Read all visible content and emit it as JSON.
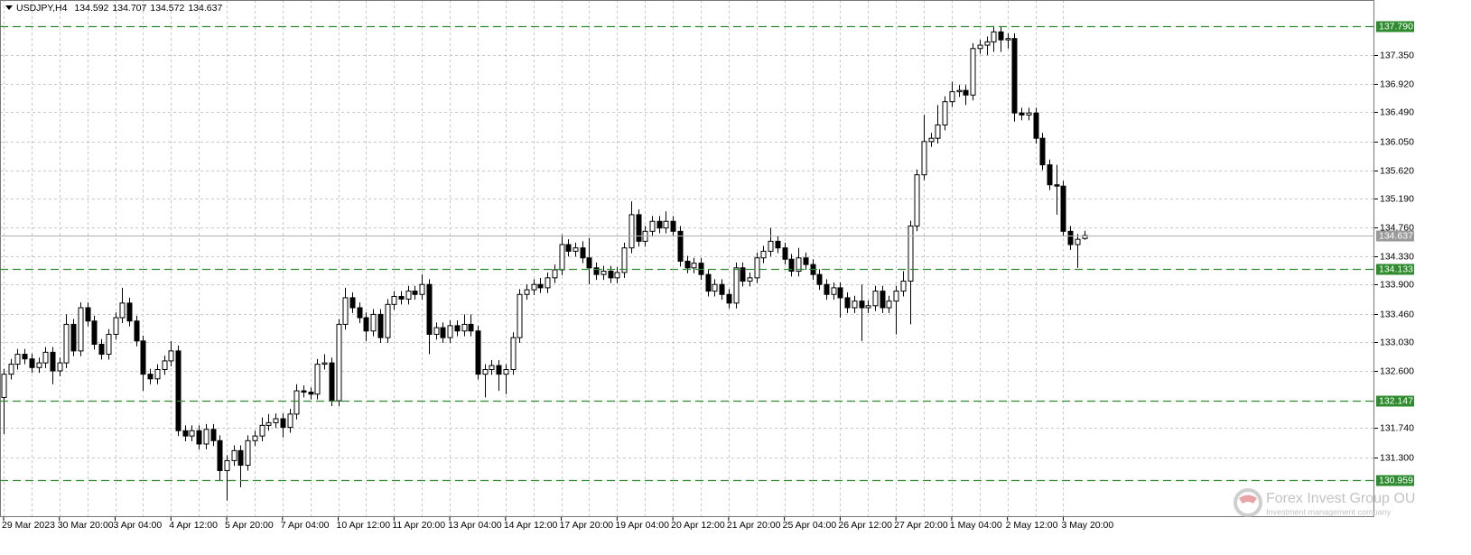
{
  "chart_data": {
    "type": "candlestick",
    "symbol": "USDJPY,H4",
    "categories": [
      "29 Mar 2023",
      null,
      null,
      null,
      null,
      null,
      null,
      null,
      "30 Mar 20:00",
      null,
      null,
      null,
      null,
      null,
      null,
      null,
      "3 Apr 04:00",
      null,
      null,
      null,
      null,
      null,
      null,
      null,
      "4 Apr 12:00",
      null,
      null,
      null,
      null,
      null,
      null,
      null,
      "5 Apr 20:00",
      null,
      null,
      null,
      null,
      null,
      null,
      null,
      "7 Apr 04:00",
      null,
      null,
      null,
      null,
      null,
      null,
      null,
      "10 Apr 12:00",
      null,
      null,
      null,
      null,
      null,
      null,
      null,
      "11 Apr 20:00",
      null,
      null,
      null,
      null,
      null,
      null,
      null,
      "13 Apr 04:00",
      null,
      null,
      null,
      null,
      null,
      null,
      null,
      "14 Apr 12:00",
      null,
      null,
      null,
      null,
      null,
      null,
      null,
      "17 Apr 20:00",
      null,
      null,
      null,
      null,
      null,
      null,
      null,
      "19 Apr 04:00",
      null,
      null,
      null,
      null,
      null,
      null,
      null,
      "20 Apr 12:00",
      null,
      null,
      null,
      null,
      null,
      null,
      null,
      "21 Apr 20:00",
      null,
      null,
      null,
      null,
      null,
      null,
      null,
      "25 Apr 04:00",
      null,
      null,
      null,
      null,
      null,
      null,
      null,
      "26 Apr 12:00",
      null,
      null,
      null,
      null,
      null,
      null,
      null,
      "27 Apr 20:00",
      null,
      null,
      null,
      null,
      null,
      null,
      null,
      "1 May 04:00",
      null,
      null,
      null,
      null,
      null,
      null,
      null,
      "2 May 12:00",
      null,
      null,
      null,
      null,
      null,
      null,
      null,
      "3 May 20:00",
      null,
      null,
      null
    ],
    "open": [
      132.2,
      132.55,
      132.7,
      132.85,
      132.78,
      132.65,
      132.72,
      132.88,
      132.6,
      132.72,
      133.3,
      132.9,
      133.55,
      133.35,
      133.0,
      132.85,
      133.15,
      133.4,
      133.62,
      133.35,
      133.05,
      132.55,
      132.48,
      132.62,
      132.75,
      132.9,
      131.7,
      131.62,
      131.7,
      131.5,
      131.72,
      131.55,
      131.1,
      131.25,
      131.4,
      131.18,
      131.55,
      131.62,
      131.78,
      131.82,
      131.88,
      131.75,
      131.95,
      132.3,
      132.28,
      132.25,
      132.7,
      132.72,
      132.15,
      133.3,
      133.7,
      133.55,
      133.4,
      133.2,
      133.45,
      133.1,
      133.6,
      133.72,
      133.68,
      133.8,
      133.75,
      133.9,
      133.15,
      133.25,
      133.1,
      133.28,
      133.2,
      133.3,
      133.2,
      132.55,
      132.62,
      132.68,
      132.55,
      132.62,
      133.1,
      133.75,
      133.82,
      133.9,
      133.85,
      134.0,
      134.12,
      134.5,
      134.4,
      134.45,
      134.3,
      134.15,
      134.05,
      134.1,
      134.0,
      134.08,
      134.45,
      134.95,
      134.55,
      134.7,
      134.85,
      134.75,
      134.85,
      134.7,
      134.25,
      134.15,
      134.22,
      134.05,
      133.8,
      133.9,
      133.75,
      133.62,
      134.15,
      133.95,
      134.0,
      134.3,
      134.4,
      134.55,
      134.45,
      134.28,
      134.1,
      134.3,
      134.2,
      134.05,
      133.9,
      133.75,
      133.85,
      133.7,
      133.55,
      133.65,
      133.55,
      133.58,
      133.8,
      133.55,
      133.65,
      133.8,
      133.95,
      134.78,
      135.55,
      136.05,
      136.1,
      136.3,
      136.65,
      136.8,
      136.82,
      136.75,
      137.45,
      137.5,
      137.55,
      137.7,
      137.58,
      137.6,
      136.48,
      136.45,
      136.48,
      136.1,
      135.7,
      135.4,
      135.38,
      134.7,
      134.5,
      134.592
    ],
    "high": [
      132.63,
      132.78,
      132.93,
      132.93,
      132.86,
      132.8,
      132.96,
      132.96,
      132.8,
      133.45,
      133.38,
      133.63,
      133.63,
      133.43,
      133.08,
      133.23,
      133.48,
      133.85,
      133.7,
      133.43,
      133.13,
      132.63,
      132.7,
      132.83,
      133.05,
      132.98,
      131.78,
      131.78,
      131.78,
      131.8,
      131.8,
      131.63,
      131.33,
      131.48,
      131.48,
      131.63,
      131.7,
      131.9,
      131.95,
      131.96,
      131.96,
      132.03,
      132.4,
      132.38,
      132.35,
      132.78,
      132.85,
      132.8,
      133.38,
      133.85,
      133.78,
      133.63,
      133.48,
      133.53,
      133.53,
      133.68,
      133.8,
      133.8,
      133.88,
      133.88,
      134.05,
      133.98,
      133.33,
      133.33,
      133.36,
      133.36,
      133.45,
      133.45,
      133.28,
      132.7,
      132.76,
      132.76,
      132.7,
      133.18,
      133.83,
      133.9,
      133.98,
      134.0,
      134.08,
      134.2,
      134.65,
      134.58,
      134.53,
      134.55,
      134.6,
      134.23,
      134.18,
      134.18,
      134.16,
      134.53,
      135.15,
      135.03,
      134.78,
      134.93,
      134.93,
      135.0,
      134.93,
      134.78,
      134.33,
      134.3,
      134.3,
      134.13,
      133.98,
      133.98,
      133.83,
      134.23,
      134.23,
      134.08,
      134.38,
      134.48,
      134.75,
      134.63,
      134.53,
      134.36,
      134.45,
      134.38,
      134.28,
      134.13,
      133.98,
      133.93,
      133.93,
      133.78,
      133.73,
      133.9,
      133.66,
      133.88,
      133.88,
      133.73,
      133.88,
      134.1,
      134.86,
      135.63,
      136.45,
      136.18,
      136.6,
      136.73,
      136.95,
      136.9,
      136.9,
      137.53,
      137.58,
      137.63,
      137.79,
      137.78,
      137.68,
      137.68,
      136.56,
      136.56,
      136.56,
      136.18,
      135.78,
      135.7,
      135.46,
      134.78,
      134.66,
      134.707
    ],
    "low": [
      131.65,
      132.47,
      132.62,
      132.7,
      132.57,
      132.57,
      132.64,
      132.4,
      132.52,
      132.64,
      132.82,
      132.82,
      133.27,
      132.92,
      132.77,
      132.77,
      133.07,
      133.32,
      133.27,
      132.97,
      132.3,
      132.4,
      132.4,
      132.54,
      132.67,
      131.62,
      131.54,
      131.54,
      131.42,
      131.42,
      131.47,
      130.95,
      130.65,
      131.17,
      130.85,
      131.1,
      131.47,
      131.54,
      131.7,
      131.74,
      131.6,
      131.67,
      131.87,
      132.2,
      132.17,
      132.17,
      132.62,
      132.07,
      132.07,
      133.22,
      133.47,
      133.32,
      133.05,
      133.12,
      133.02,
      133.02,
      133.52,
      133.6,
      133.6,
      133.67,
      133.67,
      132.85,
      133.07,
      133.02,
      133.02,
      133.12,
      133.12,
      133.12,
      132.47,
      132.2,
      132.54,
      132.3,
      132.25,
      132.54,
      133.02,
      133.67,
      133.74,
      133.77,
      133.77,
      133.92,
      134.04,
      134.32,
      134.32,
      134.22,
      133.9,
      133.97,
      133.97,
      133.92,
      133.92,
      134.0,
      134.37,
      134.47,
      134.47,
      134.62,
      134.67,
      134.67,
      134.62,
      134.17,
      134.07,
      134.07,
      133.97,
      133.72,
      133.72,
      133.67,
      133.54,
      133.54,
      133.87,
      133.87,
      133.92,
      134.22,
      134.32,
      134.37,
      134.2,
      134.02,
      134.02,
      134.12,
      133.97,
      133.82,
      133.67,
      133.67,
      133.4,
      133.47,
      133.47,
      133.05,
      133.47,
      133.5,
      133.47,
      133.47,
      133.15,
      133.72,
      133.3,
      134.7,
      135.47,
      135.97,
      136.02,
      136.22,
      136.57,
      136.72,
      136.6,
      136.67,
      137.37,
      137.35,
      137.4,
      137.4,
      137.45,
      136.35,
      136.37,
      136.37,
      136.02,
      135.62,
      135.32,
      134.95,
      134.62,
      134.42,
      134.15,
      134.572
    ],
    "close": [
      132.55,
      132.7,
      132.85,
      132.78,
      132.65,
      132.72,
      132.88,
      132.6,
      132.72,
      133.3,
      132.9,
      133.55,
      133.35,
      133.0,
      132.85,
      133.15,
      133.4,
      133.62,
      133.35,
      133.05,
      132.55,
      132.48,
      132.62,
      132.75,
      132.9,
      131.7,
      131.62,
      131.7,
      131.5,
      131.72,
      131.55,
      131.1,
      131.25,
      131.4,
      131.18,
      131.55,
      131.62,
      131.78,
      131.82,
      131.88,
      131.75,
      131.95,
      132.3,
      132.28,
      132.25,
      132.7,
      132.72,
      132.15,
      133.3,
      133.7,
      133.55,
      133.4,
      133.2,
      133.45,
      133.1,
      133.6,
      133.72,
      133.68,
      133.8,
      133.75,
      133.9,
      133.15,
      133.25,
      133.1,
      133.28,
      133.2,
      133.3,
      133.2,
      132.55,
      132.62,
      132.68,
      132.55,
      132.62,
      133.1,
      133.75,
      133.82,
      133.9,
      133.85,
      134.0,
      134.12,
      134.5,
      134.4,
      134.45,
      134.3,
      134.15,
      134.05,
      134.1,
      134.0,
      134.08,
      134.45,
      134.95,
      134.55,
      134.7,
      134.85,
      134.75,
      134.85,
      134.7,
      134.25,
      134.15,
      134.22,
      134.05,
      133.8,
      133.9,
      133.75,
      133.62,
      134.15,
      133.95,
      134.0,
      134.3,
      134.4,
      134.55,
      134.45,
      134.28,
      134.1,
      134.3,
      134.2,
      134.05,
      133.9,
      133.75,
      133.85,
      133.7,
      133.55,
      133.65,
      133.55,
      133.58,
      133.8,
      133.55,
      133.65,
      133.8,
      133.95,
      134.78,
      135.55,
      136.05,
      136.1,
      136.3,
      136.65,
      136.8,
      136.82,
      136.75,
      137.45,
      137.5,
      137.55,
      137.7,
      137.58,
      137.6,
      136.48,
      136.45,
      136.48,
      136.1,
      135.7,
      135.4,
      135.38,
      134.7,
      134.5,
      134.58,
      134.637
    ],
    "ylim": [
      130.4,
      138.18
    ],
    "yticks": [
      {
        "value": 137.35,
        "label": "137.350"
      },
      {
        "value": 136.92,
        "label": "136.920"
      },
      {
        "value": 136.49,
        "label": "136.490"
      },
      {
        "value": 136.05,
        "label": "136.050"
      },
      {
        "value": 135.62,
        "label": "135.620"
      },
      {
        "value": 135.19,
        "label": "135.190"
      },
      {
        "value": 134.76,
        "label": "134.760"
      },
      {
        "value": 134.33,
        "label": "134.330"
      },
      {
        "value": 133.9,
        "label": "133.900"
      },
      {
        "value": 133.46,
        "label": "133.460"
      },
      {
        "value": 133.03,
        "label": "133.030"
      },
      {
        "value": 132.6,
        "label": "132.600"
      },
      {
        "value": 131.74,
        "label": "131.740"
      },
      {
        "value": 131.3,
        "label": "131.300"
      }
    ],
    "levels": [
      {
        "value": 137.79,
        "label": "137.790"
      },
      134.133,
      132.147,
      130.959
    ],
    "level_color": "#2e8b2e",
    "up_color": "#ffffff",
    "down_color": "#000000",
    "grid": true,
    "watermark": "Forex Invest Group OU",
    "watermark_sub": "Investment management company"
  }
}
